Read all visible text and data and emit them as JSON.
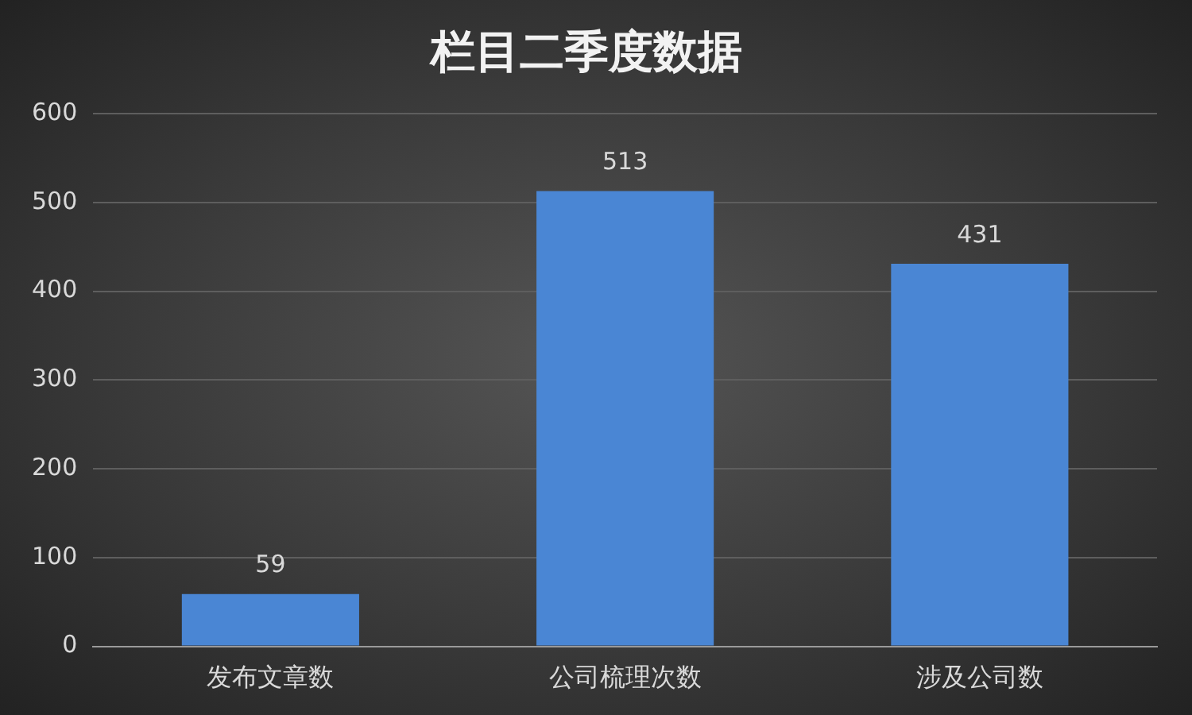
{
  "chart_data": {
    "type": "bar",
    "title": "栏目二季度数据",
    "categories": [
      "发布文章数",
      "公司梳理次数",
      "涉及公司数"
    ],
    "values": [
      59,
      513,
      431
    ],
    "color": "#4a86d4",
    "ylim": [
      0,
      600
    ],
    "yticks": [
      0,
      100,
      200,
      300,
      400,
      500,
      600
    ],
    "grid": "y",
    "data_labels": true
  }
}
